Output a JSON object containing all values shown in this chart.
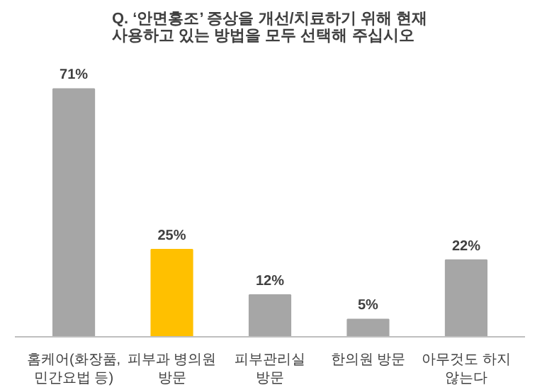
{
  "chart_data": {
    "type": "bar",
    "title": "Q. ‘안면홍조’ 증상을 개선/치료하기 위해 현재 사용하고 있는 방법을 모두 선택해 주십시오",
    "categories": [
      "홈케어(화장품, 민간요법 등)",
      "피부과 병의원 방문",
      "피부관리실 방문",
      "한의원 방문",
      "아무것도 하지 않는다"
    ],
    "values": [
      71,
      25,
      12,
      5,
      22
    ],
    "colors": [
      "#a6a6a6",
      "#ffc000",
      "#a6a6a6",
      "#a6a6a6",
      "#a6a6a6"
    ],
    "value_labels": [
      "71%",
      "25%",
      "12%",
      "5%",
      "22%"
    ],
    "grid": false
  }
}
